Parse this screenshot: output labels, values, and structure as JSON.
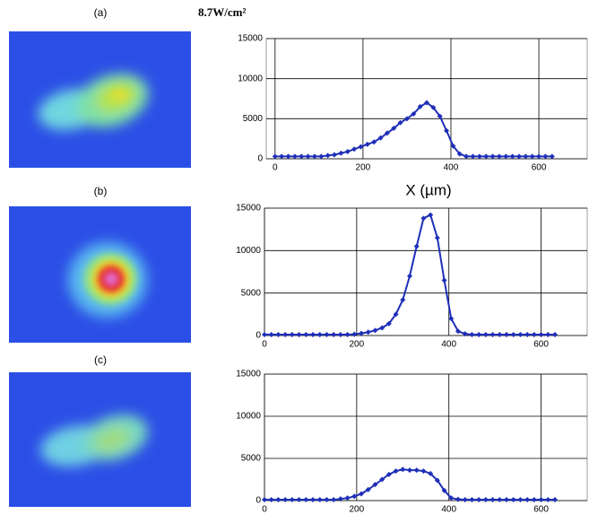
{
  "chart_data": [
    {
      "type": "line",
      "label": "(a)",
      "title": "8.7W/cm²",
      "xlabel": "X (µm)",
      "x": [
        0,
        15,
        30,
        45,
        60,
        75,
        90,
        105,
        120,
        135,
        150,
        165,
        180,
        195,
        210,
        225,
        240,
        255,
        270,
        285,
        300,
        315,
        330,
        345,
        360,
        375,
        390,
        405,
        420,
        435,
        450,
        465,
        480,
        495,
        510,
        525,
        540,
        555,
        570,
        585,
        600,
        615,
        630
      ],
      "series": [
        {
          "color": "#1f2fb8",
          "values": [
            300,
            300,
            300,
            300,
            300,
            300,
            300,
            300,
            400,
            500,
            700,
            900,
            1200,
            1500,
            1800,
            2100,
            2600,
            3200,
            3800,
            4500,
            5000,
            5600,
            6500,
            7000,
            6400,
            5300,
            3500,
            1600,
            600,
            300,
            300,
            300,
            300,
            300,
            300,
            300,
            300,
            300,
            300,
            300,
            300,
            300,
            300
          ]
        }
      ],
      "xlim": [
        -20,
        710
      ],
      "xticks": [
        0,
        200,
        400,
        600
      ],
      "ylim": [
        0,
        15000
      ],
      "yticks": [
        0,
        5000,
        10000,
        15000
      ],
      "grid": true
    },
    {
      "type": "line",
      "label": "(b)",
      "x": [
        0,
        15,
        30,
        45,
        60,
        75,
        90,
        105,
        120,
        135,
        150,
        165,
        180,
        195,
        210,
        225,
        240,
        255,
        270,
        285,
        300,
        315,
        330,
        345,
        360,
        375,
        390,
        405,
        420,
        435,
        450,
        465,
        480,
        495,
        510,
        525,
        540,
        555,
        570,
        585,
        600,
        615,
        630
      ],
      "series": [
        {
          "color": "#1f2fb8",
          "values": [
            100,
            100,
            100,
            100,
            100,
            100,
            100,
            100,
            100,
            100,
            100,
            100,
            100,
            150,
            250,
            400,
            600,
            900,
            1400,
            2500,
            4200,
            7000,
            10500,
            13800,
            14200,
            11500,
            6500,
            2000,
            500,
            200,
            100,
            100,
            100,
            100,
            100,
            100,
            100,
            100,
            100,
            100,
            100,
            100,
            100
          ]
        }
      ],
      "xlim": [
        0,
        700
      ],
      "xticks": [
        0,
        200,
        400,
        600
      ],
      "ylim": [
        0,
        15000
      ],
      "yticks": [
        0,
        5000,
        10000,
        15000
      ],
      "grid": true
    },
    {
      "type": "line",
      "label": "(c)",
      "x": [
        0,
        15,
        30,
        45,
        60,
        75,
        90,
        105,
        120,
        135,
        150,
        165,
        180,
        195,
        210,
        225,
        240,
        255,
        270,
        285,
        300,
        315,
        330,
        345,
        360,
        375,
        390,
        405,
        420,
        435,
        450,
        465,
        480,
        495,
        510,
        525,
        540,
        555,
        570,
        585,
        600,
        615,
        630
      ],
      "series": [
        {
          "color": "#1f2fb8",
          "values": [
            100,
            100,
            100,
            100,
            100,
            100,
            100,
            100,
            100,
            100,
            100,
            200,
            300,
            500,
            800,
            1300,
            1900,
            2500,
            3100,
            3500,
            3700,
            3600,
            3600,
            3500,
            3200,
            2400,
            1200,
            300,
            150,
            100,
            100,
            100,
            100,
            100,
            100,
            100,
            100,
            100,
            100,
            100,
            100,
            100,
            100
          ]
        }
      ],
      "xlim": [
        0,
        700
      ],
      "xticks": [
        0,
        200,
        400,
        600
      ],
      "ylim": [
        0,
        15000
      ],
      "yticks": [
        0,
        5000,
        10000,
        15000
      ],
      "grid": true
    }
  ]
}
